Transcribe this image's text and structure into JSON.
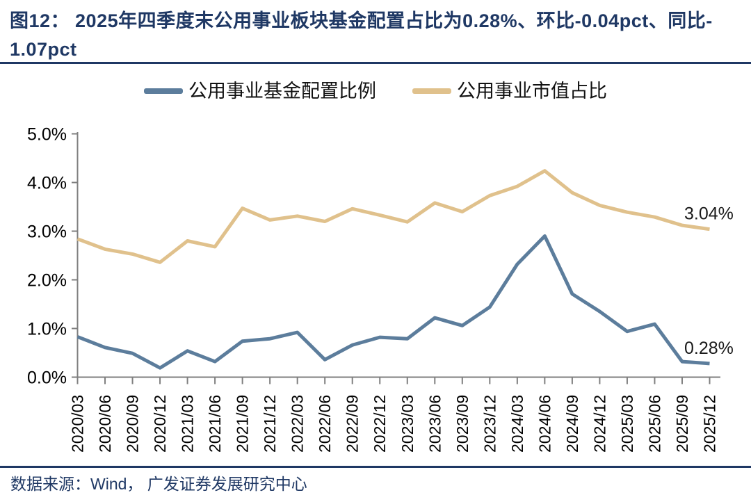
{
  "title": {
    "line1": "图12： 2025年四季度末公用事业板块基金配置占比为0.28%、环比-0.04pct、同比-",
    "line2": "1.07pct"
  },
  "source": {
    "text": "数据来源：Wind， 广发证券发展研究中心"
  },
  "colors": {
    "navy": "#1F3864",
    "axis_gray": "#7F7F7F",
    "tick_label": "#000000",
    "end_label": "#1A1A1A",
    "series_fund": "#5C7D9C",
    "series_marketcap": "#E0C18C"
  },
  "chart_data": {
    "type": "line",
    "title": "2025年四季度末公用事业板块基金配置占比为0.28%、环比-0.04pct、同比-1.07pct",
    "categories": [
      "2020/03",
      "2020/06",
      "2020/09",
      "2020/12",
      "2021/03",
      "2021/06",
      "2021/09",
      "2021/12",
      "2022/03",
      "2022/06",
      "2022/09",
      "2022/12",
      "2023/03",
      "2023/06",
      "2023/09",
      "2023/12",
      "2024/03",
      "2024/06",
      "2024/09",
      "2024/12",
      "2025/03",
      "2025/06",
      "2025/09",
      "2025/12"
    ],
    "series": [
      {
        "name": "公用事业基金配置比例",
        "color": "#5C7D9C",
        "end_label": "0.28%",
        "values": [
          0.83,
          0.61,
          0.49,
          0.19,
          0.54,
          0.32,
          0.74,
          0.79,
          0.92,
          0.36,
          0.66,
          0.82,
          0.79,
          1.22,
          1.06,
          1.44,
          2.32,
          2.9,
          1.71,
          1.35,
          0.94,
          1.09,
          0.32,
          0.28
        ]
      },
      {
        "name": "公用事业市值占比",
        "color": "#E0C18C",
        "end_label": "3.04%",
        "values": [
          2.84,
          2.63,
          2.53,
          2.36,
          2.8,
          2.68,
          3.47,
          3.23,
          3.31,
          3.2,
          3.46,
          3.33,
          3.19,
          3.58,
          3.4,
          3.73,
          3.92,
          4.24,
          3.79,
          3.53,
          3.39,
          3.29,
          3.12,
          3.04
        ]
      }
    ],
    "xlabel": "",
    "ylabel": "",
    "ylim": [
      0,
      5
    ],
    "ytick_labels": [
      "0.0%",
      "1.0%",
      "2.0%",
      "3.0%",
      "4.0%",
      "5.0%"
    ],
    "grid": false,
    "legend_position": "top",
    "x_tick_rotation": -90
  }
}
